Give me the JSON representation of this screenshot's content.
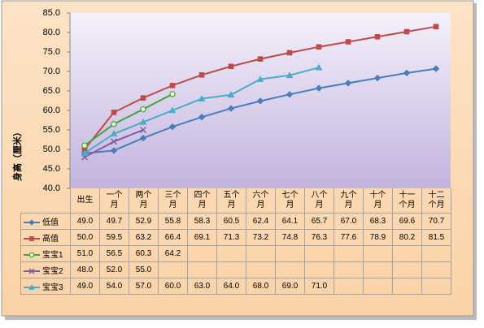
{
  "chart_data": {
    "type": "line",
    "y_label": "身高（厘米）",
    "categories": [
      "出生",
      "一个月",
      "两个月",
      "三个月",
      "四个月",
      "五个月",
      "六个月",
      "七个月",
      "八个月",
      "九个月",
      "十个月",
      "十一个月",
      "十二个月"
    ],
    "series": [
      {
        "name": "低值",
        "color": "#4a7ebb",
        "marker": "diamond",
        "values": [
          49.0,
          49.7,
          52.9,
          55.8,
          58.3,
          60.5,
          62.4,
          64.1,
          65.7,
          67.0,
          68.3,
          69.6,
          70.7
        ],
        "value_labels": [
          "49.0",
          "49.7",
          "52.9",
          "55.8",
          "58.3",
          "60.5",
          "62.4",
          "64.1",
          "65.7",
          "67.0",
          "68.3",
          "69.6",
          "70.7"
        ]
      },
      {
        "name": "高值",
        "color": "#be4b48",
        "marker": "square",
        "values": [
          50.0,
          59.5,
          63.2,
          66.4,
          69.1,
          71.3,
          73.2,
          74.8,
          76.3,
          77.6,
          78.9,
          80.2,
          81.5
        ],
        "value_labels": [
          "50.0",
          "59.5",
          "63.2",
          "66.4",
          "69.1",
          "71.3",
          "73.2",
          "74.8",
          "76.3",
          "77.6",
          "78.9",
          "80.2",
          "81.5"
        ]
      },
      {
        "name": "宝宝1",
        "color": "#3fa63f",
        "marker": "circle",
        "values": [
          51.0,
          56.5,
          60.3,
          64.2,
          null,
          null,
          null,
          null,
          null,
          null,
          null,
          null,
          null
        ],
        "value_labels": [
          "51.0",
          "56.5",
          "60.3",
          "64.2",
          null,
          null,
          null,
          null,
          null,
          null,
          null,
          null,
          null
        ]
      },
      {
        "name": "宝宝2",
        "color": "#7d5fa0",
        "marker": "x",
        "values": [
          48.0,
          52.0,
          55.0,
          null,
          null,
          null,
          null,
          null,
          null,
          null,
          null,
          null,
          null
        ],
        "value_labels": [
          "48.0",
          "52.0",
          "55.0",
          null,
          null,
          null,
          null,
          null,
          null,
          null,
          null,
          null,
          null
        ]
      },
      {
        "name": "宝宝3",
        "color": "#4bacc6",
        "marker": "triangle",
        "values": [
          49.0,
          54.0,
          57.0,
          60.0,
          63.0,
          64.0,
          68.0,
          69.0,
          71.0,
          null,
          null,
          null,
          null
        ],
        "value_labels": [
          "49.0",
          "54.0",
          "57.0",
          "60.0",
          "63.0",
          "64.0",
          "68.0",
          "69.0",
          "71.0",
          null,
          null,
          null,
          null
        ]
      }
    ],
    "ylim": [
      40,
      85
    ],
    "yticks": [
      {
        "value": 40,
        "label": "40.0"
      },
      {
        "value": 45,
        "label": "45.0"
      },
      {
        "value": 50,
        "label": "50.0"
      },
      {
        "value": 55,
        "label": "55.0"
      },
      {
        "value": 60,
        "label": "60.0"
      },
      {
        "value": 65,
        "label": "65.0"
      },
      {
        "value": 70,
        "label": "70.0"
      },
      {
        "value": 75,
        "label": "75.0"
      },
      {
        "value": 80,
        "label": "80.0"
      },
      {
        "value": 85,
        "label": "85.0"
      }
    ],
    "grid": false
  }
}
